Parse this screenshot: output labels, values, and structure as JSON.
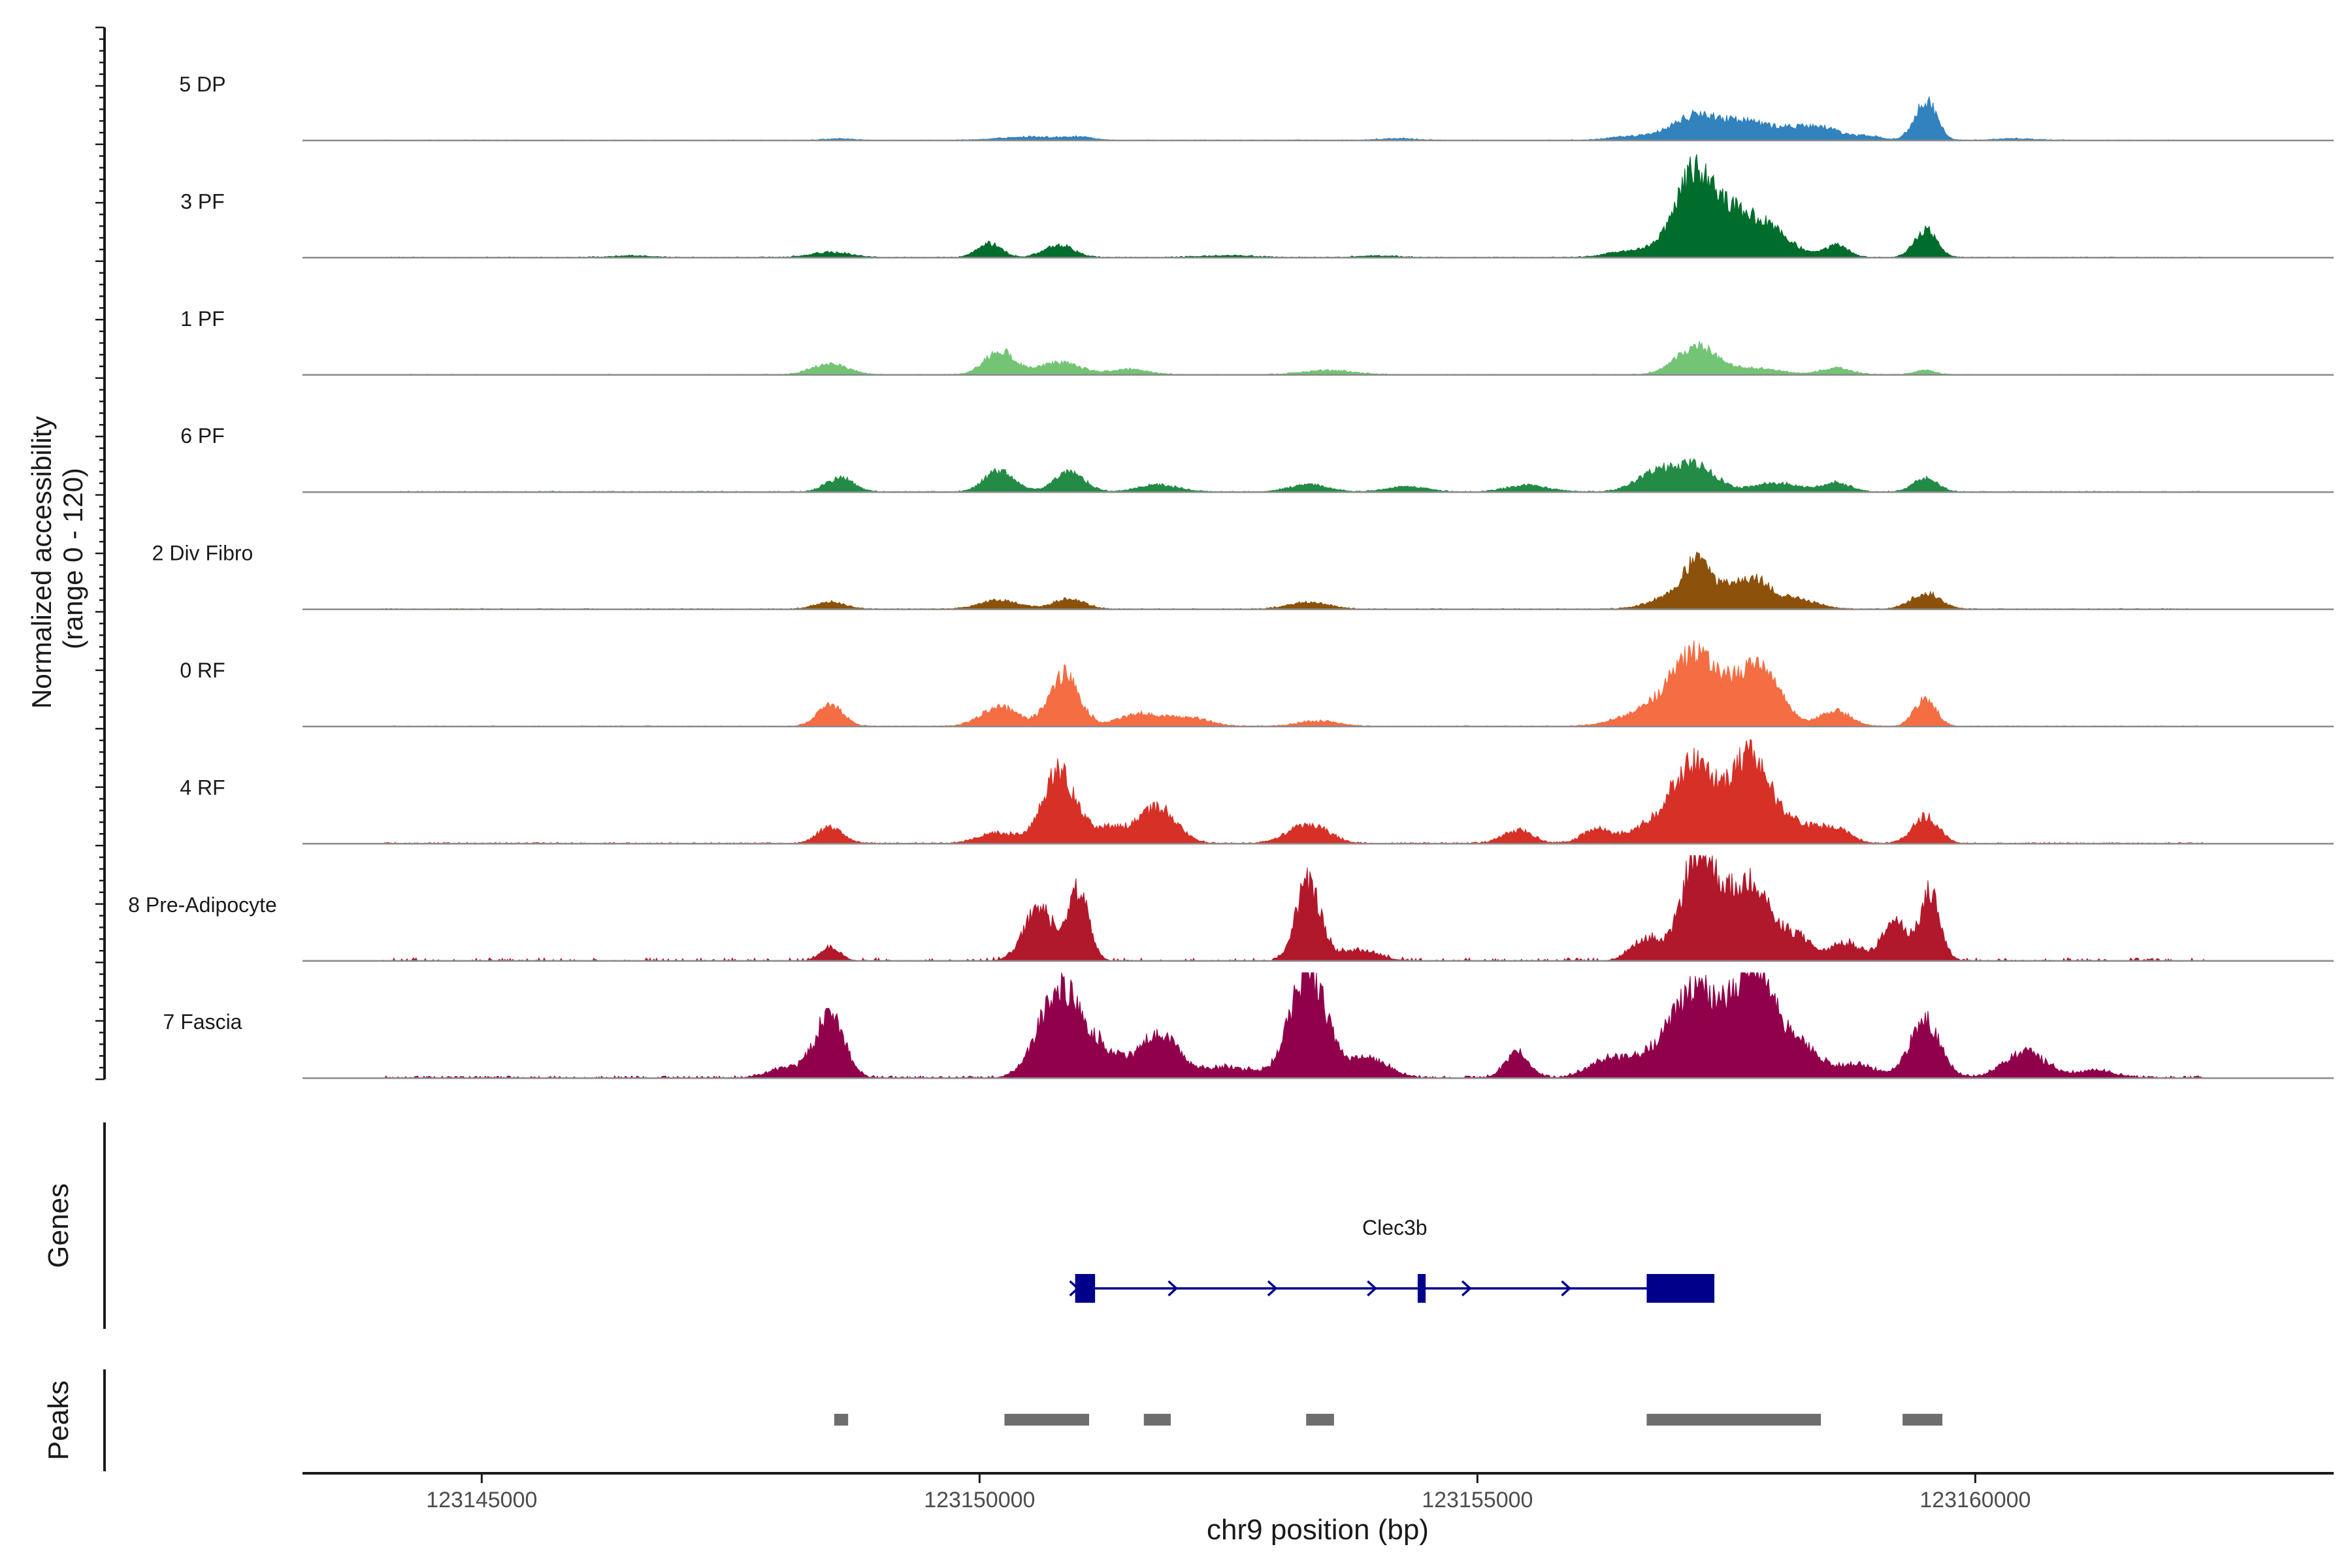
{
  "chart_data": {
    "type": "area",
    "title": "",
    "ylabel_line1": "Normalized accessibility",
    "ylabel_line2": "(range 0 - 120)",
    "y_range": [
      0,
      120
    ],
    "xlabel": "chr9 position (bp)",
    "chromosome": "chr9",
    "xlim": [
      123143200,
      123163600
    ],
    "x_ticks": [
      123145000,
      123150000,
      123155000,
      123160000
    ],
    "x_tick_labels": [
      "123145000",
      "123150000",
      "123155000",
      "123160000"
    ],
    "tracks": [
      {
        "name": "5 DP",
        "color": "#3182BD",
        "scale": 0.42,
        "noise": 0.8,
        "density": 0.45,
        "range": [
          123144000,
          123162000
        ],
        "peaks": [
          [
            123148600,
            2,
            150
          ],
          [
            123150500,
            4,
            300
          ],
          [
            123151000,
            3,
            150
          ],
          [
            123154200,
            2,
            200
          ],
          [
            123156500,
            4,
            200
          ],
          [
            123157200,
            28,
            250
          ],
          [
            123157700,
            17,
            200
          ],
          [
            123158200,
            14,
            250
          ],
          [
            123158500,
            8,
            150
          ],
          [
            123158900,
            5,
            150
          ],
          [
            123159500,
            46,
            110
          ],
          [
            123160400,
            2,
            200
          ]
        ]
      },
      {
        "name": "3 PF",
        "color": "#006D2C",
        "scale": 0.42,
        "noise": 1.0,
        "density": 0.55,
        "range": [
          123144000,
          123162300
        ],
        "peaks": [
          [
            123146500,
            2,
            200
          ],
          [
            123148500,
            6,
            200
          ],
          [
            123150100,
            16,
            120
          ],
          [
            123150800,
            14,
            150
          ],
          [
            123152500,
            2,
            300
          ],
          [
            123154000,
            2,
            200
          ],
          [
            123156600,
            8,
            250
          ],
          [
            123157200,
            100,
            200
          ],
          [
            123157600,
            30,
            150
          ],
          [
            123157900,
            36,
            220
          ],
          [
            123158600,
            14,
            120
          ],
          [
            123159500,
            32,
            110
          ]
        ]
      },
      {
        "name": "1 PF",
        "color": "#74C476",
        "scale": 0.42,
        "noise": 0.9,
        "density": 0.5,
        "range": [
          123144000,
          123162000
        ],
        "peaks": [
          [
            123148500,
            12,
            180
          ],
          [
            123150200,
            27,
            150
          ],
          [
            123150800,
            14,
            200
          ],
          [
            123151500,
            6,
            200
          ],
          [
            123153500,
            5,
            250
          ],
          [
            123157200,
            32,
            200
          ],
          [
            123157800,
            7,
            250
          ],
          [
            123158600,
            8,
            150
          ],
          [
            123159500,
            5,
            100
          ]
        ]
      },
      {
        "name": "6 PF",
        "color": "#238B45",
        "scale": 0.42,
        "noise": 1.1,
        "density": 0.6,
        "range": [
          123144000,
          123162300
        ],
        "peaks": [
          [
            123148600,
            16,
            140
          ],
          [
            123150200,
            24,
            150
          ],
          [
            123150900,
            22,
            150
          ],
          [
            123151800,
            8,
            200
          ],
          [
            123153300,
            8,
            200
          ],
          [
            123154300,
            6,
            200
          ],
          [
            123155500,
            8,
            200
          ],
          [
            123156800,
            22,
            200
          ],
          [
            123157200,
            28,
            200
          ],
          [
            123158000,
            10,
            220
          ],
          [
            123158600,
            10,
            150
          ],
          [
            123159500,
            16,
            120
          ]
        ]
      },
      {
        "name": "2 Div Fibro",
        "color": "#8C510A",
        "scale": 0.42,
        "noise": 1.0,
        "density": 0.55,
        "range": [
          123144000,
          123162300
        ],
        "peaks": [
          [
            123148500,
            8,
            150
          ],
          [
            123150200,
            10,
            200
          ],
          [
            123150900,
            12,
            150
          ],
          [
            123153300,
            8,
            200
          ],
          [
            123156900,
            12,
            200
          ],
          [
            123157200,
            48,
            140
          ],
          [
            123157500,
            20,
            150
          ],
          [
            123157800,
            30,
            150
          ],
          [
            123158200,
            12,
            200
          ],
          [
            123159500,
            18,
            150
          ]
        ]
      },
      {
        "name": "0 RF",
        "color": "#F46D43",
        "scale": 0.42,
        "noise": 1.0,
        "density": 0.55,
        "range": [
          123144000,
          123162300
        ],
        "peaks": [
          [
            123148500,
            24,
            130
          ],
          [
            123150200,
            22,
            180
          ],
          [
            123150850,
            60,
            150
          ],
          [
            123151600,
            14,
            200
          ],
          [
            123152100,
            10,
            200
          ],
          [
            123153400,
            6,
            200
          ],
          [
            123156800,
            22,
            300
          ],
          [
            123157200,
            75,
            220
          ],
          [
            123157800,
            70,
            220
          ],
          [
            123158600,
            18,
            150
          ],
          [
            123159500,
            30,
            110
          ]
        ]
      },
      {
        "name": "4 RF",
        "color": "#D73027",
        "scale": 0.42,
        "noise": 1.5,
        "density": 0.6,
        "range": [
          123144000,
          123162300
        ],
        "peaks": [
          [
            123148500,
            18,
            130
          ],
          [
            123150200,
            12,
            200
          ],
          [
            123150800,
            80,
            160
          ],
          [
            123151300,
            18,
            200
          ],
          [
            123151800,
            40,
            180
          ],
          [
            123153300,
            22,
            200
          ],
          [
            123155400,
            15,
            150
          ],
          [
            123156200,
            15,
            150
          ],
          [
            123156800,
            20,
            250
          ],
          [
            123157200,
            85,
            220
          ],
          [
            123157750,
            100,
            180
          ],
          [
            123158200,
            22,
            200
          ],
          [
            123158600,
            15,
            150
          ],
          [
            123159500,
            30,
            130
          ]
        ]
      },
      {
        "name": "8 Pre-Adipocyte",
        "color": "#B2182B",
        "scale": 0.42,
        "noise": 3.5,
        "density": 0.28,
        "range": [
          123144000,
          123162300
        ],
        "peaks": [
          [
            123148500,
            15,
            100
          ],
          [
            123150600,
            60,
            150
          ],
          [
            123151000,
            80,
            100
          ],
          [
            123153300,
            90,
            120
          ],
          [
            123153800,
            12,
            200
          ],
          [
            123156700,
            25,
            150
          ],
          [
            123157200,
            120,
            150
          ],
          [
            123157500,
            60,
            150
          ],
          [
            123157800,
            80,
            150
          ],
          [
            123158200,
            30,
            150
          ],
          [
            123158700,
            20,
            150
          ],
          [
            123159200,
            45,
            130
          ],
          [
            123159550,
            75,
            100
          ]
        ]
      },
      {
        "name": "7 Fascia",
        "color": "#91004B",
        "scale": 0.42,
        "noise": 2.5,
        "density": 0.6,
        "range": [
          123144000,
          123162300
        ],
        "peaks": [
          [
            123148500,
            70,
            140
          ],
          [
            123148100,
            12,
            200
          ],
          [
            123150800,
            100,
            200
          ],
          [
            123151200,
            30,
            200
          ],
          [
            123151800,
            48,
            200
          ],
          [
            123152500,
            12,
            250
          ],
          [
            123153300,
            120,
            180
          ],
          [
            123153900,
            22,
            200
          ],
          [
            123155400,
            28,
            120
          ],
          [
            123156300,
            15,
            200
          ],
          [
            123156800,
            25,
            300
          ],
          [
            123157200,
            90,
            220
          ],
          [
            123157750,
            120,
            200
          ],
          [
            123158200,
            40,
            200
          ],
          [
            123158800,
            15,
            200
          ],
          [
            123159500,
            65,
            150
          ],
          [
            123160500,
            30,
            200
          ],
          [
            123161200,
            8,
            200
          ]
        ]
      }
    ],
    "genes_label": "Genes",
    "gene": {
      "name": "Clec3b",
      "color": "#00008B",
      "start": 123150960,
      "end": 123157380,
      "exons": [
        [
          123150960,
          123151160
        ],
        [
          123154400,
          123154480
        ],
        [
          123156700,
          123157380
        ]
      ]
    },
    "peaks_label": "Peaks",
    "peak_color": "#6E6E6E",
    "peak_regions": [
      [
        123148540,
        123148680
      ],
      [
        123150250,
        123151100
      ],
      [
        123151650,
        123151920
      ],
      [
        123153280,
        123153560
      ],
      [
        123156700,
        123158450
      ],
      [
        123159270,
        123159670
      ]
    ]
  }
}
